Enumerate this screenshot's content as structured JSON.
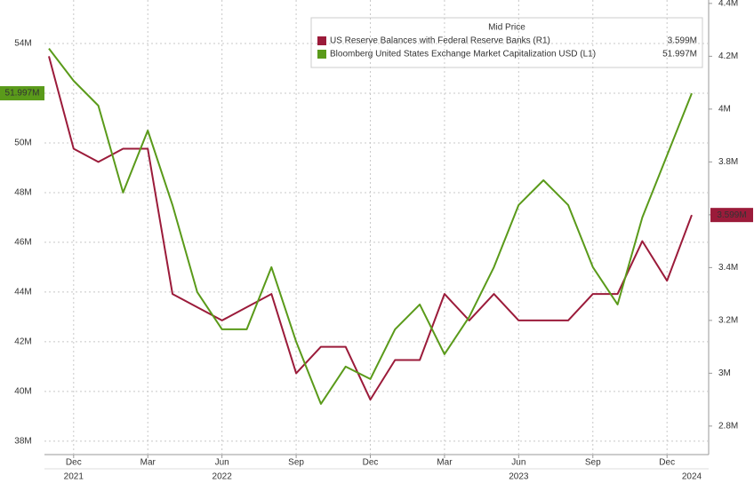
{
  "chart_data": {
    "type": "line",
    "legend_title": "Mid Price",
    "x": [
      "2021-11",
      "2021-12",
      "2022-01",
      "2022-02",
      "2022-03",
      "2022-04",
      "2022-05",
      "2022-06",
      "2022-07",
      "2022-08",
      "2022-09",
      "2022-10",
      "2022-11",
      "2022-12",
      "2023-01",
      "2023-02",
      "2023-03",
      "2023-04",
      "2023-05",
      "2023-06",
      "2023-07",
      "2023-08",
      "2023-09",
      "2023-10",
      "2023-11",
      "2023-12",
      "2024-01"
    ],
    "xlim": [
      "2021-11",
      "2024-01"
    ],
    "xticks": [
      {
        "value": "2021-12",
        "label": "Dec"
      },
      {
        "value": "2022-03",
        "label": "Mar"
      },
      {
        "value": "2022-06",
        "label": "Jun"
      },
      {
        "value": "2022-09",
        "label": "Sep"
      },
      {
        "value": "2022-12",
        "label": "Dec"
      },
      {
        "value": "2023-03",
        "label": "Mar"
      },
      {
        "value": "2023-06",
        "label": "Jun"
      },
      {
        "value": "2023-09",
        "label": "Sep"
      },
      {
        "value": "2023-12",
        "label": "Dec"
      }
    ],
    "year_ticks": [
      {
        "value": "2021-12",
        "label": "2021"
      },
      {
        "value": "2022-06",
        "label": "2022"
      },
      {
        "value": "2023-06",
        "label": "2023"
      },
      {
        "value": "2024-01",
        "label": "2024"
      }
    ],
    "ylim": [
      37.46,
      55.75
    ],
    "yticks": [
      {
        "value": 38,
        "label": "38M"
      },
      {
        "value": 40,
        "label": "40M"
      },
      {
        "value": 42,
        "label": "42M"
      },
      {
        "value": 44,
        "label": "44M"
      },
      {
        "value": 46,
        "label": "46M"
      },
      {
        "value": 48,
        "label": "48M"
      },
      {
        "value": 50,
        "label": "50M"
      },
      {
        "value": 52,
        "label": "52M"
      },
      {
        "value": 54,
        "label": "54M"
      }
    ],
    "y2lim": [
      2.692,
      4.413
    ],
    "y2ticks": [
      {
        "value": 2.8,
        "label": "2.8M"
      },
      {
        "value": 3,
        "label": "3M"
      },
      {
        "value": 3.2,
        "label": "3.2M"
      },
      {
        "value": 3.4,
        "label": "3.4M"
      },
      {
        "value": 3.6,
        "label": "3.6M"
      },
      {
        "value": 3.8,
        "label": "3.8M"
      },
      {
        "value": 4,
        "label": "4M"
      },
      {
        "value": 4.2,
        "label": "4.2M"
      },
      {
        "value": 4.4,
        "label": "4.4M"
      }
    ],
    "grid": true,
    "series": [
      {
        "name": "US Reserve Balances with Federal Reserve Banks  (R1)",
        "color": "#9b1b3a",
        "axis": "y2",
        "last_value_label": "3.599M",
        "values": [
          4.2,
          3.85,
          3.8,
          3.85,
          3.85,
          3.3,
          3.25,
          3.2,
          3.25,
          3.3,
          3.0,
          3.1,
          3.1,
          2.9,
          3.05,
          3.05,
          3.3,
          3.2,
          3.3,
          3.2,
          3.2,
          3.2,
          3.3,
          3.3,
          3.5,
          3.35,
          3.599
        ]
      },
      {
        "name": "Bloomberg United States Exchange Market Capitalization USD  (L1)",
        "color": "#5a9a1a",
        "axis": "y",
        "last_value_label": "51.997M",
        "values": [
          53.8,
          52.5,
          51.5,
          48,
          50.5,
          47.5,
          44,
          42.5,
          42.5,
          45,
          42,
          39.5,
          41,
          40.5,
          42.5,
          43.5,
          41.5,
          43,
          45,
          47.5,
          48.5,
          47.5,
          45,
          43.5,
          47,
          49.5,
          51.997
        ]
      }
    ]
  }
}
